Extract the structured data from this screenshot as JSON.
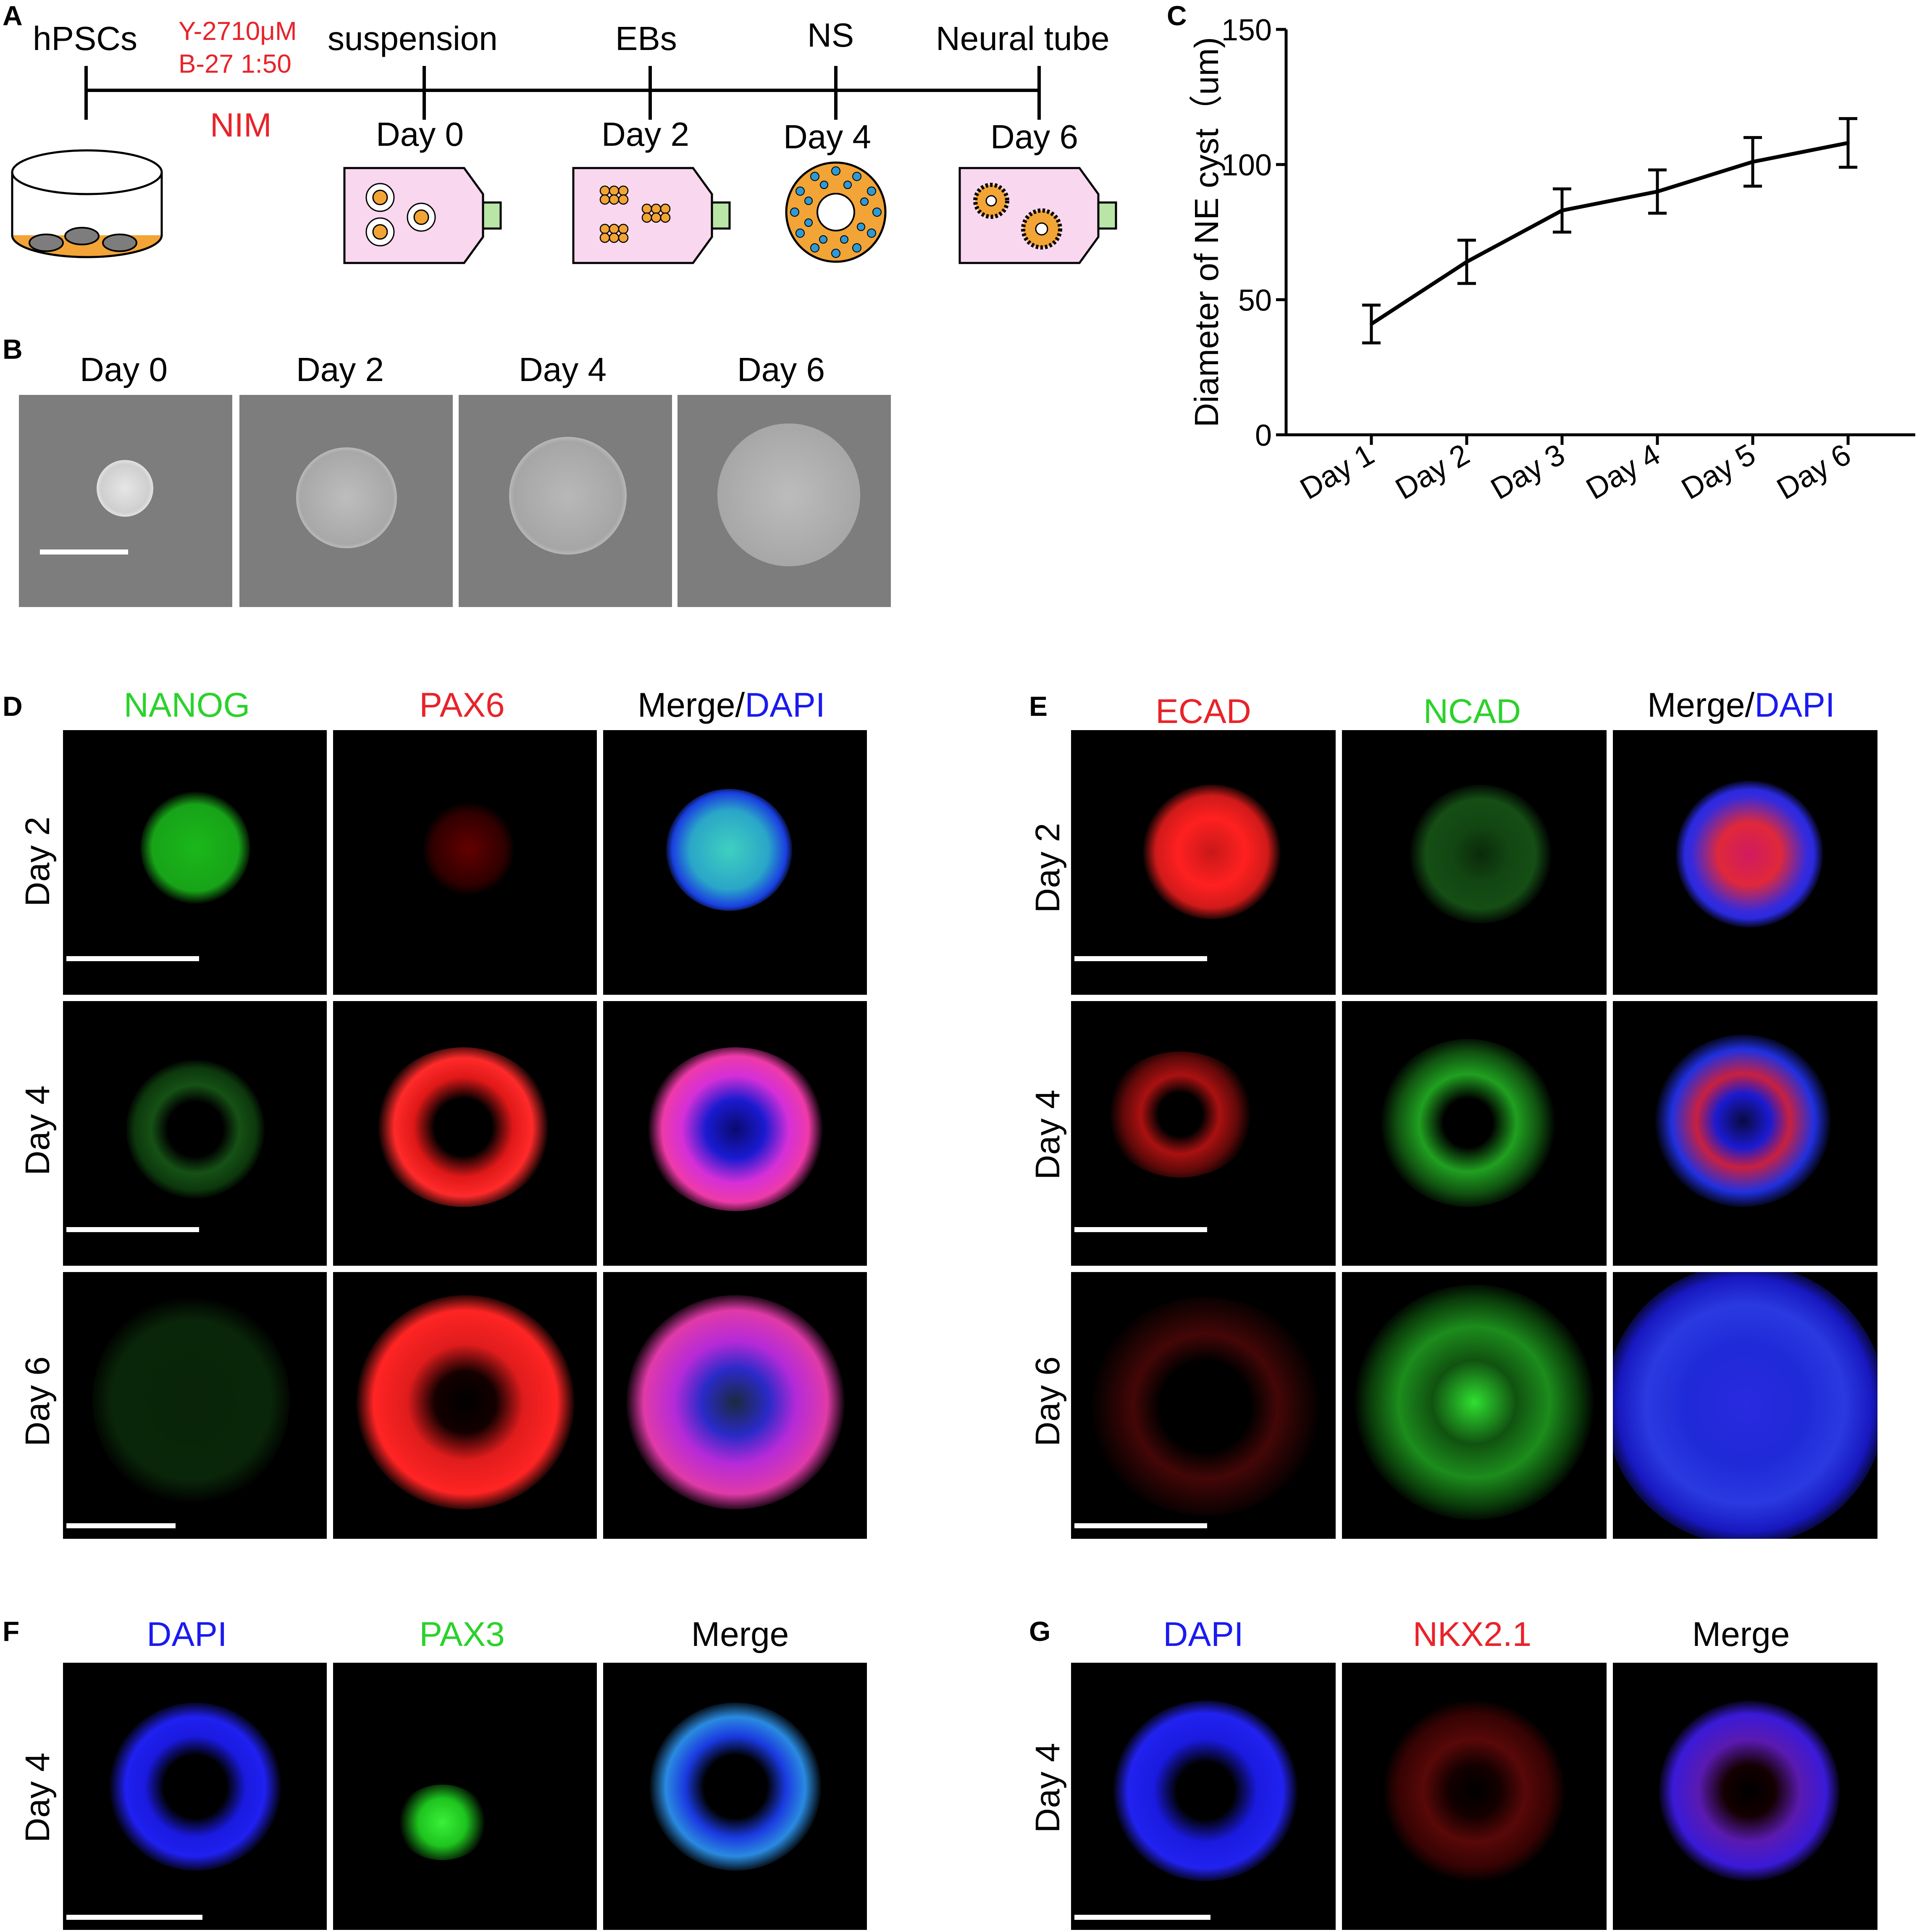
{
  "colors": {
    "red": "#e8232a",
    "green": "#2bd22b",
    "blue": "#1a1af0",
    "dish_orange": "#f2a436",
    "flask_pink": "#f8d7ef",
    "flask_cap": "#b9e6a6",
    "ns_blue": "#2d9ad6"
  },
  "panel_a": {
    "letter": "A",
    "start_label": "hPSCs",
    "reagent_1": "Y-2710μM",
    "reagent_2": "B-27 1:50",
    "medium": "NIM",
    "stages": [
      {
        "name": "suspension",
        "day": "Day 0"
      },
      {
        "name": "EBs",
        "day": "Day 2"
      },
      {
        "name": "NS",
        "day": "Day 4"
      },
      {
        "name": "Neural tube",
        "day": "Day 6"
      }
    ]
  },
  "panel_b": {
    "letter": "B",
    "images": [
      "Day 0",
      "Day 2",
      "Day 4",
      "Day 6"
    ]
  },
  "chart_data": {
    "type": "line",
    "categories": [
      "Day 1",
      "Day 2",
      "Day 3",
      "Day 4",
      "Day 5",
      "Day 6"
    ],
    "values": [
      41,
      64,
      83,
      90,
      101,
      108
    ],
    "error": [
      7,
      8,
      8,
      8,
      9,
      9
    ],
    "title": "",
    "xlabel": "",
    "ylabel": "Diameter of NE cyst（um)",
    "ylim": [
      0,
      150
    ],
    "yticks": [
      0,
      50,
      100,
      150
    ],
    "grid": false
  },
  "panel_c": {
    "letter": "C"
  },
  "panel_d": {
    "letter": "D",
    "columns": [
      "NANOG",
      "PAX6",
      "Merge/",
      "DAPI"
    ],
    "rows": [
      "Day 2",
      "Day 4",
      "Day 6"
    ]
  },
  "panel_e": {
    "letter": "E",
    "columns": [
      "ECAD",
      "NCAD",
      "Merge/",
      "DAPI"
    ],
    "rows": [
      "Day 2",
      "Day 4",
      "Day 6"
    ]
  },
  "panel_f": {
    "letter": "F",
    "columns": [
      "DAPI",
      "PAX3",
      "Merge"
    ],
    "rows": [
      "Day 4"
    ]
  },
  "panel_g": {
    "letter": "G",
    "columns": [
      "DAPI",
      "NKX2.1",
      "Merge"
    ],
    "rows": [
      "Day 4"
    ]
  }
}
